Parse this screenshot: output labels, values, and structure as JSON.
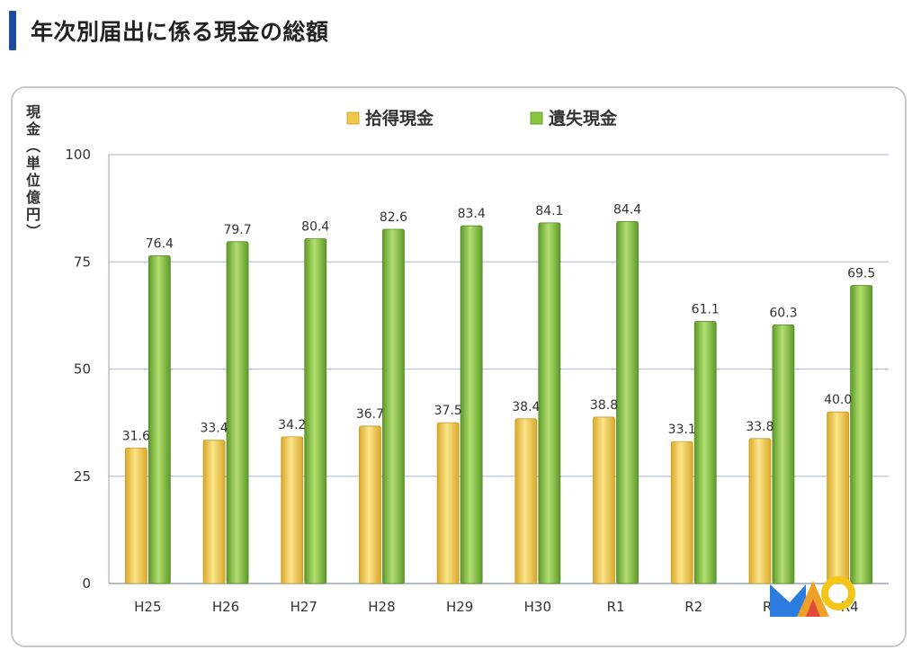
{
  "page": {
    "title": "年次別届出に係る現金の総額"
  },
  "chart_data": {
    "type": "bar",
    "categories": [
      "H25",
      "H26",
      "H27",
      "H28",
      "H29",
      "H30",
      "R1",
      "R2",
      "R3",
      "R4"
    ],
    "series": [
      {
        "name": "拾得現金",
        "color": "#f2c84b",
        "values": [
          31.6,
          33.4,
          34.2,
          36.7,
          37.5,
          38.4,
          38.8,
          33.1,
          33.8,
          40.0
        ]
      },
      {
        "name": "遺失現金",
        "color": "#8cc63f",
        "values": [
          76.4,
          79.7,
          80.4,
          82.6,
          83.4,
          84.1,
          84.4,
          61.1,
          60.3,
          69.5
        ]
      }
    ],
    "ylabel": "現金（単位億円）",
    "ylim": [
      0,
      100
    ],
    "yticks": [
      0,
      25,
      50,
      75,
      100
    ],
    "grid": true,
    "legend_position": "top-center",
    "data_labels": true
  }
}
